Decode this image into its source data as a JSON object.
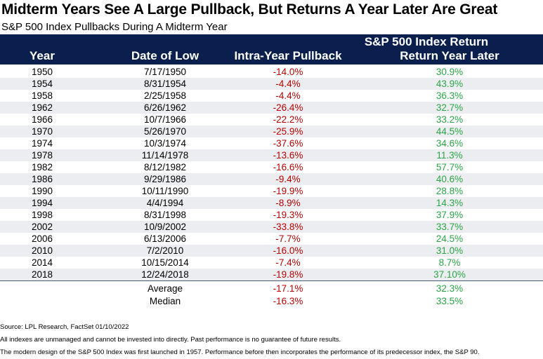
{
  "title": "Midterm Years See A Large Pullback, But Returns A Year Later Are Great",
  "subtitle": "S&P 500 Index Pullbacks During A Midterm Year",
  "header": {
    "group_label": "S&P 500 Index Return",
    "columns": [
      "Year",
      "Date of Low",
      "Intra-Year Pullback",
      "Return Year Later"
    ]
  },
  "colors": {
    "header_bg": "#0b1f4f",
    "negative": "#c00000",
    "positive": "#28a745",
    "row_shade": "#ecedf0"
  },
  "chart_data": {
    "type": "table",
    "columns": [
      "Year",
      "Date of Low",
      "Intra-Year Pullback",
      "Return Year Later"
    ],
    "rows": [
      [
        "1950",
        "7/17/1950",
        "-14.0%",
        "30.9%"
      ],
      [
        "1954",
        "8/31/1954",
        "-4.4%",
        "43.9%"
      ],
      [
        "1958",
        "2/25/1958",
        "-4.4%",
        "36.3%"
      ],
      [
        "1962",
        "6/26/1962",
        "-26.4%",
        "32.7%"
      ],
      [
        "1966",
        "10/7/1966",
        "-22.2%",
        "33.2%"
      ],
      [
        "1970",
        "5/26/1970",
        "-25.9%",
        "44.5%"
      ],
      [
        "1974",
        "10/3/1974",
        "-37.6%",
        "34.6%"
      ],
      [
        "1978",
        "11/14/1978",
        "-13.6%",
        "11.3%"
      ],
      [
        "1982",
        "8/12/1982",
        "-16.6%",
        "57.7%"
      ],
      [
        "1986",
        "9/29/1986",
        "-9.4%",
        "40.6%"
      ],
      [
        "1990",
        "10/11/1990",
        "-19.9%",
        "28.8%"
      ],
      [
        "1994",
        "4/4/1994",
        "-8.9%",
        "14.3%"
      ],
      [
        "1998",
        "8/31/1998",
        "-19.3%",
        "37.9%"
      ],
      [
        "2002",
        "10/9/2002",
        "-33.8%",
        "33.7%"
      ],
      [
        "2006",
        "6/13/2006",
        "-7.7%",
        "24.5%"
      ],
      [
        "2010",
        "7/2/2010",
        "-16.0%",
        "31.0%"
      ],
      [
        "2014",
        "10/15/2014",
        "-7.4%",
        "8.7%"
      ],
      [
        "2018",
        "12/24/2018",
        "-19.8%",
        "37.10%"
      ]
    ],
    "summary": [
      [
        "Average",
        "-17.1%",
        "32.3%"
      ],
      [
        "Median",
        "-16.3%",
        "33.5%"
      ]
    ]
  },
  "footnotes": [
    "Source: LPL Research, FactSet 01/10/2022",
    "All indexes are unmanaged and cannot be invested into directly. Past performance is no guarantee of future results.",
    "The modern design of the S&P 500 Index was first launched in 1957. Performance before then incorporates the performance of its predecessor index, the S&P 90."
  ]
}
